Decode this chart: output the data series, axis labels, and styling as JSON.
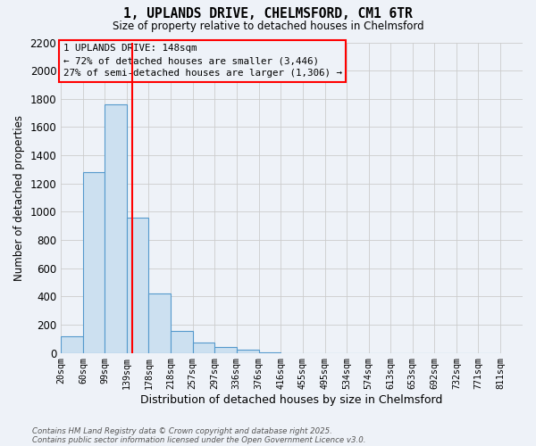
{
  "title_line1": "1, UPLANDS DRIVE, CHELMSFORD, CM1 6TR",
  "title_line2": "Size of property relative to detached houses in Chelmsford",
  "xlabel": "Distribution of detached houses by size in Chelmsford",
  "ylabel": "Number of detached properties",
  "footnote1": "Contains HM Land Registry data © Crown copyright and database right 2025.",
  "footnote2": "Contains public sector information licensed under the Open Government Licence v3.0.",
  "annotation_line1": "1 UPLANDS DRIVE: 148sqm",
  "annotation_line2": "← 72% of detached houses are smaller (3,446)",
  "annotation_line3": "27% of semi-detached houses are larger (1,306) →",
  "bar_left_edges": [
    20,
    60,
    99,
    139,
    178,
    218,
    257,
    297,
    336,
    376,
    416,
    455,
    495,
    534,
    574,
    613,
    653,
    692,
    732,
    771
  ],
  "bar_widths": [
    40,
    39,
    40,
    39,
    40,
    39,
    40,
    39,
    40,
    40,
    39,
    40,
    39,
    40,
    39,
    40,
    39,
    40,
    39,
    40
  ],
  "bar_heights": [
    120,
    1280,
    1760,
    960,
    420,
    155,
    75,
    40,
    20,
    5,
    0,
    0,
    0,
    0,
    0,
    0,
    0,
    0,
    0,
    0
  ],
  "bar_color": "#cce0f0",
  "bar_edgecolor": "#5599cc",
  "grid_color": "#cccccc",
  "bg_color": "#eef2f8",
  "redline_x": 148,
  "ylim": [
    0,
    2200
  ],
  "yticks": [
    0,
    200,
    400,
    600,
    800,
    1000,
    1200,
    1400,
    1600,
    1800,
    2000,
    2200
  ],
  "xtick_labels": [
    "20sqm",
    "60sqm",
    "99sqm",
    "139sqm",
    "178sqm",
    "218sqm",
    "257sqm",
    "297sqm",
    "336sqm",
    "376sqm",
    "416sqm",
    "455sqm",
    "495sqm",
    "534sqm",
    "574sqm",
    "613sqm",
    "653sqm",
    "692sqm",
    "732sqm",
    "771sqm",
    "811sqm"
  ],
  "xtick_positions": [
    20,
    60,
    99,
    139,
    178,
    218,
    257,
    297,
    336,
    376,
    416,
    455,
    495,
    534,
    574,
    613,
    653,
    692,
    732,
    771,
    811
  ]
}
